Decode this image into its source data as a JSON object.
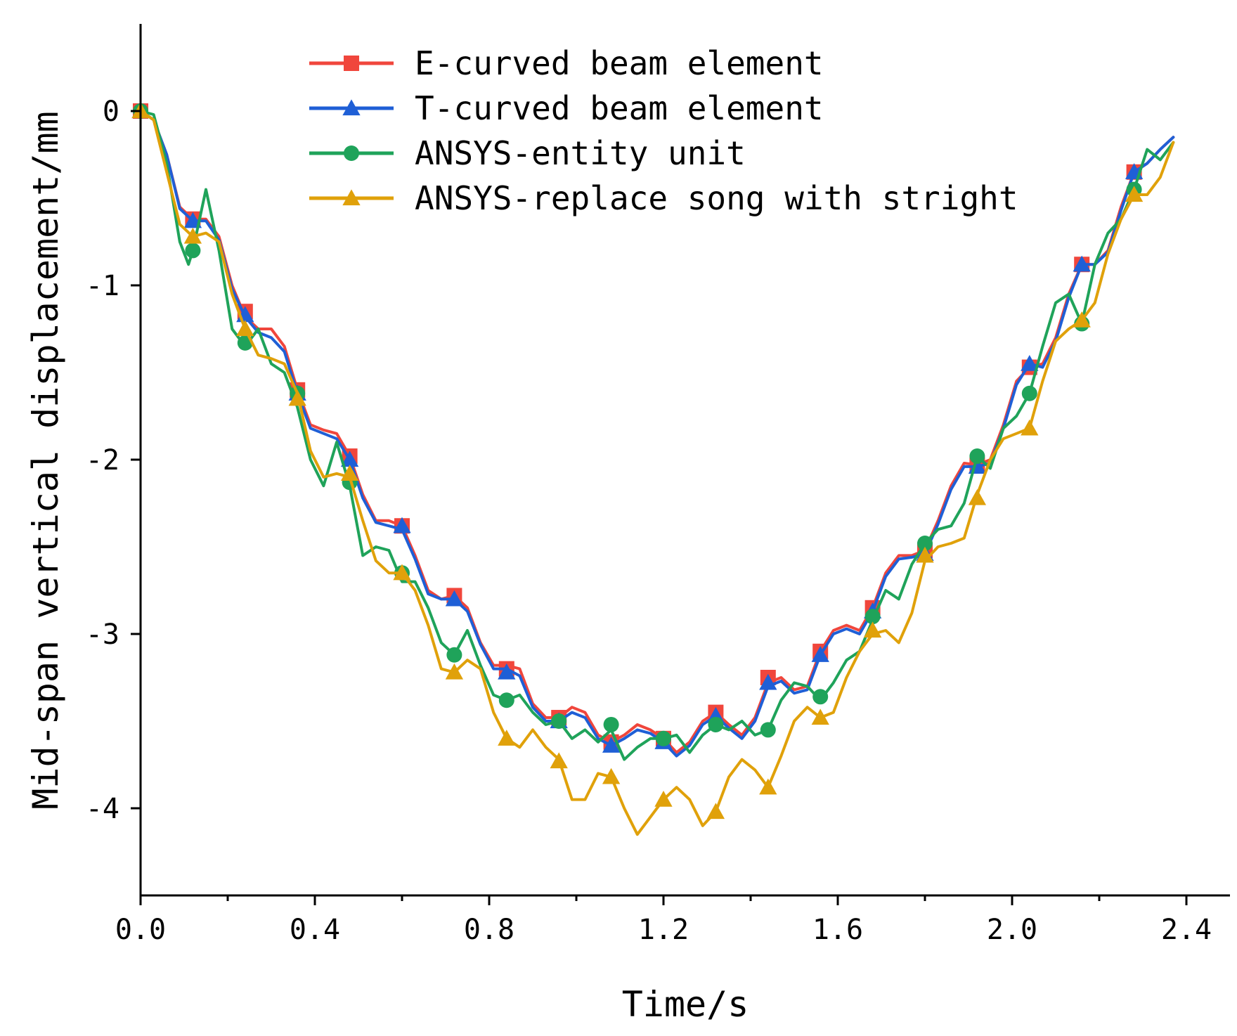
{
  "chart_data": {
    "type": "line",
    "title": "",
    "xlabel": "Time/s",
    "ylabel": "Mid-span vertical displacement/mm",
    "xlim": [
      0,
      2.5
    ],
    "ylim": [
      -4.5,
      0.5
    ],
    "xticks": [
      0.0,
      0.4,
      0.8,
      1.2,
      1.6,
      2.0,
      2.4
    ],
    "xtick_labels": [
      "0.0",
      "0.4",
      "0.8",
      "1.2",
      "1.6",
      "2.0",
      "2.4"
    ],
    "yticks": [
      0,
      -1,
      -2,
      -3,
      -4
    ],
    "ytick_labels": [
      "0",
      "-1",
      "-2",
      "-3",
      "-4"
    ],
    "legend_position": "top-center",
    "series": [
      {
        "name": "E-curved beam element",
        "color": "#F0463C",
        "marker": "square",
        "x": [
          0.0,
          0.03,
          0.06,
          0.09,
          0.12,
          0.15,
          0.18,
          0.21,
          0.24,
          0.27,
          0.3,
          0.33,
          0.36,
          0.39,
          0.42,
          0.45,
          0.48,
          0.51,
          0.54,
          0.57,
          0.6,
          0.63,
          0.66,
          0.69,
          0.72,
          0.75,
          0.78,
          0.81,
          0.84,
          0.87,
          0.9,
          0.93,
          0.96,
          0.99,
          1.02,
          1.05,
          1.08,
          1.11,
          1.14,
          1.17,
          1.2,
          1.23,
          1.26,
          1.29,
          1.32,
          1.35,
          1.38,
          1.41,
          1.44,
          1.47,
          1.5,
          1.53,
          1.56,
          1.59,
          1.62,
          1.65,
          1.68,
          1.71,
          1.74,
          1.77,
          1.8,
          1.83,
          1.86,
          1.89,
          1.92,
          1.95,
          1.98,
          2.01,
          2.04,
          2.07,
          2.1,
          2.13,
          2.16,
          2.19,
          2.22,
          2.25,
          2.28,
          2.31,
          2.34,
          2.37
        ],
        "y": [
          0.0,
          -0.05,
          -0.25,
          -0.55,
          -0.62,
          -0.62,
          -0.72,
          -1.0,
          -1.18,
          -1.25,
          -1.25,
          -1.35,
          -1.6,
          -1.8,
          -1.83,
          -1.85,
          -1.98,
          -2.2,
          -2.35,
          -2.35,
          -2.38,
          -2.55,
          -2.75,
          -2.8,
          -2.78,
          -2.85,
          -3.05,
          -3.18,
          -3.18,
          -3.2,
          -3.4,
          -3.48,
          -3.48,
          -3.42,
          -3.45,
          -3.58,
          -3.62,
          -3.58,
          -3.52,
          -3.55,
          -3.6,
          -3.68,
          -3.62,
          -3.5,
          -3.45,
          -3.52,
          -3.58,
          -3.48,
          -3.28,
          -3.25,
          -3.32,
          -3.3,
          -3.1,
          -2.98,
          -2.95,
          -2.98,
          -2.85,
          -2.65,
          -2.55,
          -2.55,
          -2.52,
          -2.35,
          -2.15,
          -2.02,
          -2.03,
          -2.0,
          -1.8,
          -1.55,
          -1.47,
          -1.45,
          -1.3,
          -1.05,
          -0.88,
          -0.88,
          -0.8,
          -0.55,
          -0.35,
          -0.3,
          -0.22,
          -0.15
        ],
        "markers_x": [
          0.0,
          0.12,
          0.24,
          0.36,
          0.48,
          0.6,
          0.72,
          0.84,
          0.96,
          1.08,
          1.2,
          1.32,
          1.44,
          1.56,
          1.68,
          1.8,
          1.92,
          2.04,
          2.16,
          2.28
        ],
        "markers_y": [
          0.0,
          -0.62,
          -1.15,
          -1.6,
          -1.98,
          -2.38,
          -2.78,
          -3.2,
          -3.48,
          -3.62,
          -3.6,
          -3.45,
          -3.25,
          -3.1,
          -2.85,
          -2.52,
          -2.03,
          -1.47,
          -0.88,
          -0.35
        ]
      },
      {
        "name": "T-curved beam element",
        "color": "#1F5FD6",
        "marker": "triangle",
        "x": [
          0.0,
          0.03,
          0.06,
          0.09,
          0.12,
          0.15,
          0.18,
          0.21,
          0.24,
          0.27,
          0.3,
          0.33,
          0.36,
          0.39,
          0.42,
          0.45,
          0.48,
          0.51,
          0.54,
          0.57,
          0.6,
          0.63,
          0.66,
          0.69,
          0.72,
          0.75,
          0.78,
          0.81,
          0.84,
          0.87,
          0.9,
          0.93,
          0.96,
          0.99,
          1.02,
          1.05,
          1.08,
          1.11,
          1.14,
          1.17,
          1.2,
          1.23,
          1.26,
          1.29,
          1.32,
          1.35,
          1.38,
          1.41,
          1.44,
          1.47,
          1.5,
          1.53,
          1.56,
          1.59,
          1.62,
          1.65,
          1.68,
          1.71,
          1.74,
          1.77,
          1.8,
          1.83,
          1.86,
          1.89,
          1.92,
          1.95,
          1.98,
          2.01,
          2.04,
          2.07,
          2.1,
          2.13,
          2.16,
          2.19,
          2.22,
          2.25,
          2.28,
          2.31,
          2.34,
          2.37
        ],
        "y": [
          0.0,
          -0.05,
          -0.25,
          -0.56,
          -0.63,
          -0.63,
          -0.74,
          -1.02,
          -1.18,
          -1.27,
          -1.3,
          -1.38,
          -1.62,
          -1.82,
          -1.85,
          -1.88,
          -2.0,
          -2.22,
          -2.36,
          -2.38,
          -2.4,
          -2.57,
          -2.77,
          -2.8,
          -2.8,
          -2.87,
          -3.06,
          -3.2,
          -3.2,
          -3.24,
          -3.42,
          -3.5,
          -3.5,
          -3.45,
          -3.48,
          -3.6,
          -3.64,
          -3.6,
          -3.55,
          -3.57,
          -3.62,
          -3.7,
          -3.64,
          -3.52,
          -3.47,
          -3.54,
          -3.6,
          -3.5,
          -3.3,
          -3.27,
          -3.34,
          -3.32,
          -3.12,
          -3.0,
          -2.97,
          -3.0,
          -2.87,
          -2.67,
          -2.57,
          -2.56,
          -2.54,
          -2.37,
          -2.17,
          -2.04,
          -2.04,
          -2.02,
          -1.82,
          -1.57,
          -1.45,
          -1.47,
          -1.32,
          -1.07,
          -0.88,
          -0.88,
          -0.81,
          -0.57,
          -0.35,
          -0.3,
          -0.22,
          -0.15
        ],
        "markers_x": [
          0.0,
          0.12,
          0.24,
          0.36,
          0.48,
          0.6,
          0.72,
          0.84,
          0.96,
          1.08,
          1.2,
          1.32,
          1.44,
          1.56,
          1.68,
          1.8,
          1.92,
          2.04,
          2.16,
          2.28
        ],
        "markers_y": [
          0.0,
          -0.63,
          -1.17,
          -1.62,
          -2.0,
          -2.38,
          -2.8,
          -3.22,
          -3.5,
          -3.64,
          -3.62,
          -3.47,
          -3.28,
          -3.12,
          -2.87,
          -2.54,
          -2.04,
          -1.45,
          -0.88,
          -0.35
        ]
      },
      {
        "name": "ANSYS-entity unit",
        "color": "#1FA35A",
        "marker": "circle",
        "x": [
          0.0,
          0.03,
          0.06,
          0.09,
          0.11,
          0.12,
          0.15,
          0.18,
          0.21,
          0.24,
          0.27,
          0.3,
          0.33,
          0.36,
          0.39,
          0.42,
          0.45,
          0.48,
          0.51,
          0.54,
          0.57,
          0.6,
          0.63,
          0.66,
          0.69,
          0.72,
          0.75,
          0.78,
          0.81,
          0.84,
          0.87,
          0.9,
          0.93,
          0.96,
          0.99,
          1.02,
          1.05,
          1.08,
          1.11,
          1.14,
          1.17,
          1.2,
          1.23,
          1.26,
          1.29,
          1.32,
          1.35,
          1.38,
          1.41,
          1.44,
          1.47,
          1.5,
          1.53,
          1.56,
          1.59,
          1.62,
          1.65,
          1.68,
          1.71,
          1.74,
          1.77,
          1.8,
          1.83,
          1.86,
          1.89,
          1.92,
          1.95,
          1.98,
          2.01,
          2.04,
          2.07,
          2.1,
          2.13,
          2.16,
          2.19,
          2.22,
          2.25,
          2.28,
          2.31,
          2.34,
          2.37
        ],
        "y": [
          0.0,
          -0.02,
          -0.3,
          -0.75,
          -0.88,
          -0.8,
          -0.45,
          -0.8,
          -1.25,
          -1.35,
          -1.25,
          -1.45,
          -1.5,
          -1.7,
          -2.0,
          -2.15,
          -1.9,
          -2.15,
          -2.55,
          -2.5,
          -2.52,
          -2.7,
          -2.7,
          -2.85,
          -3.05,
          -3.12,
          -2.98,
          -3.18,
          -3.35,
          -3.38,
          -3.35,
          -3.45,
          -3.52,
          -3.5,
          -3.6,
          -3.55,
          -3.62,
          -3.55,
          -3.72,
          -3.65,
          -3.6,
          -3.6,
          -3.58,
          -3.68,
          -3.58,
          -3.52,
          -3.55,
          -3.5,
          -3.58,
          -3.55,
          -3.38,
          -3.28,
          -3.3,
          -3.38,
          -3.28,
          -3.15,
          -3.1,
          -2.92,
          -2.75,
          -2.8,
          -2.6,
          -2.48,
          -2.4,
          -2.38,
          -2.25,
          -1.98,
          -2.05,
          -1.82,
          -1.75,
          -1.62,
          -1.35,
          -1.1,
          -1.05,
          -1.22,
          -0.88,
          -0.7,
          -0.62,
          -0.45,
          -0.22,
          -0.28,
          -0.18
        ],
        "markers_x": [
          0.0,
          0.12,
          0.24,
          0.36,
          0.48,
          0.6,
          0.72,
          0.84,
          0.96,
          1.08,
          1.2,
          1.32,
          1.44,
          1.56,
          1.68,
          1.8,
          1.92,
          2.04,
          2.16,
          2.28
        ],
        "markers_y": [
          0.0,
          -0.8,
          -1.33,
          -1.62,
          -2.13,
          -2.65,
          -3.12,
          -3.38,
          -3.5,
          -3.52,
          -3.6,
          -3.52,
          -3.55,
          -3.36,
          -2.9,
          -2.48,
          -1.98,
          -1.62,
          -1.22,
          -0.45
        ]
      },
      {
        "name": "ANSYS-replace song with stright",
        "color": "#E0A10A",
        "marker": "triangle",
        "x": [
          0.0,
          0.03,
          0.06,
          0.09,
          0.12,
          0.15,
          0.18,
          0.21,
          0.24,
          0.27,
          0.3,
          0.33,
          0.36,
          0.39,
          0.42,
          0.45,
          0.48,
          0.51,
          0.54,
          0.57,
          0.6,
          0.63,
          0.66,
          0.69,
          0.72,
          0.75,
          0.78,
          0.81,
          0.84,
          0.87,
          0.9,
          0.93,
          0.96,
          0.99,
          1.02,
          1.05,
          1.08,
          1.11,
          1.14,
          1.17,
          1.2,
          1.23,
          1.26,
          1.29,
          1.32,
          1.35,
          1.38,
          1.41,
          1.44,
          1.47,
          1.5,
          1.53,
          1.56,
          1.59,
          1.62,
          1.65,
          1.68,
          1.71,
          1.74,
          1.77,
          1.8,
          1.83,
          1.86,
          1.89,
          1.92,
          1.95,
          1.98,
          2.01,
          2.04,
          2.07,
          2.1,
          2.13,
          2.16,
          2.19,
          2.22,
          2.25,
          2.28,
          2.31,
          2.34,
          2.37
        ],
        "y": [
          0.0,
          -0.05,
          -0.35,
          -0.65,
          -0.72,
          -0.7,
          -0.75,
          -1.05,
          -1.25,
          -1.4,
          -1.42,
          -1.45,
          -1.62,
          -1.95,
          -2.1,
          -2.08,
          -2.1,
          -2.35,
          -2.58,
          -2.65,
          -2.65,
          -2.75,
          -2.95,
          -3.2,
          -3.22,
          -3.15,
          -3.2,
          -3.45,
          -3.6,
          -3.65,
          -3.55,
          -3.65,
          -3.72,
          -3.95,
          -3.95,
          -3.8,
          -3.82,
          -4.0,
          -4.15,
          -4.05,
          -3.95,
          -3.88,
          -3.95,
          -4.1,
          -4.02,
          -3.82,
          -3.72,
          -3.78,
          -3.88,
          -3.7,
          -3.5,
          -3.42,
          -3.48,
          -3.45,
          -3.25,
          -3.1,
          -3.0,
          -2.98,
          -3.05,
          -2.88,
          -2.58,
          -2.5,
          -2.48,
          -2.45,
          -2.2,
          -2.0,
          -1.88,
          -1.85,
          -1.82,
          -1.55,
          -1.32,
          -1.25,
          -1.2,
          -1.1,
          -0.82,
          -0.62,
          -0.48,
          -0.48,
          -0.38,
          -0.18
        ],
        "markers_x": [
          0.0,
          0.12,
          0.24,
          0.36,
          0.48,
          0.6,
          0.72,
          0.84,
          0.96,
          1.08,
          1.2,
          1.32,
          1.44,
          1.56,
          1.68,
          1.8,
          1.92,
          2.04,
          2.16,
          2.28
        ],
        "markers_y": [
          0.0,
          -0.72,
          -1.25,
          -1.65,
          -2.08,
          -2.65,
          -3.22,
          -3.6,
          -3.73,
          -3.82,
          -3.95,
          -4.02,
          -3.88,
          -3.48,
          -2.98,
          -2.55,
          -2.22,
          -1.82,
          -1.2,
          -0.48
        ]
      }
    ]
  }
}
